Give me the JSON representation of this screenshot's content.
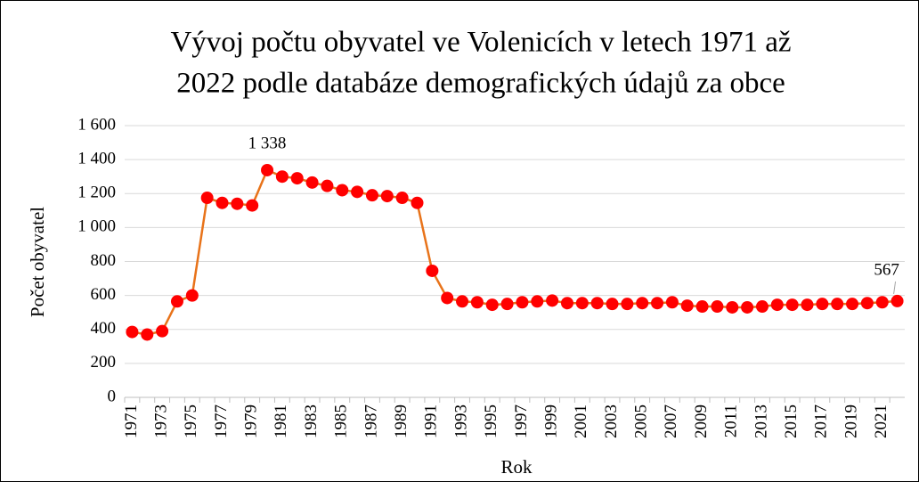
{
  "chart_data": {
    "type": "line",
    "title": [
      "Vývoj počtu obyvatel ve Volenicích v letech  1971 až",
      "2022 podle databáze demografických údajů za obce"
    ],
    "x_label": "Rok",
    "y_label": "Počet obyvatel",
    "categories": [
      "1971",
      null,
      "1973",
      null,
      "1975",
      null,
      "1977",
      null,
      "1979",
      null,
      "1981",
      null,
      "1983",
      null,
      "1985",
      null,
      "1987",
      null,
      "1989",
      null,
      "1991",
      null,
      "1993",
      null,
      "1995",
      null,
      "1997",
      null,
      "1999",
      null,
      "2001",
      null,
      "2003",
      null,
      "2005",
      null,
      "2007",
      null,
      "2009",
      null,
      "2011",
      null,
      "2013",
      null,
      "2015",
      null,
      "2017",
      null,
      "2019",
      null,
      "2021",
      null
    ],
    "series": [
      {
        "name": "Počet obyvatel",
        "color": "#e8731a",
        "marker_color": "#ff0000",
        "values": [
          385,
          370,
          390,
          565,
          600,
          1175,
          1145,
          1140,
          1130,
          1338,
          1300,
          1290,
          1265,
          1245,
          1220,
          1210,
          1190,
          1185,
          1175,
          1145,
          745,
          585,
          565,
          560,
          545,
          550,
          560,
          565,
          570,
          555,
          555,
          555,
          550,
          550,
          555,
          555,
          560,
          540,
          535,
          535,
          530,
          530,
          535,
          545,
          545,
          545,
          550,
          550,
          550,
          555,
          560,
          567
        ],
        "value_labels": [
          null,
          null,
          null,
          null,
          null,
          null,
          null,
          null,
          null,
          "1 338",
          null,
          null,
          null,
          null,
          null,
          null,
          null,
          null,
          null,
          null,
          null,
          null,
          null,
          null,
          null,
          null,
          null,
          null,
          null,
          null,
          null,
          null,
          null,
          null,
          null,
          null,
          null,
          null,
          null,
          null,
          null,
          null,
          null,
          null,
          null,
          null,
          null,
          null,
          null,
          null,
          null,
          "567"
        ]
      }
    ],
    "ylim": [
      0,
      1600
    ],
    "yticks": [
      0,
      200,
      400,
      600,
      800,
      {
        "value": 1000,
        "label": "1 000"
      },
      {
        "value": 1200,
        "label": "1 200"
      },
      {
        "value": 1400,
        "label": "1 400"
      },
      {
        "value": 1600,
        "label": "1 600"
      }
    ],
    "grid": true
  }
}
